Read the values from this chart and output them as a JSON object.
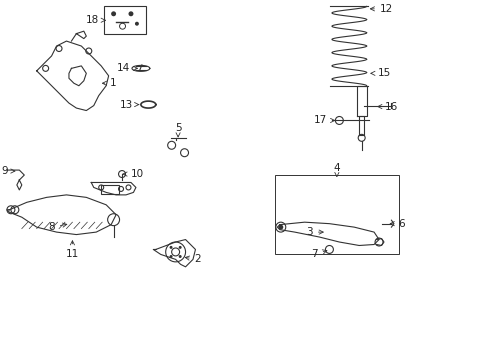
{
  "background_color": "#ffffff",
  "line_color": "#333333",
  "label_color": "#222222",
  "font_size": 7.5
}
